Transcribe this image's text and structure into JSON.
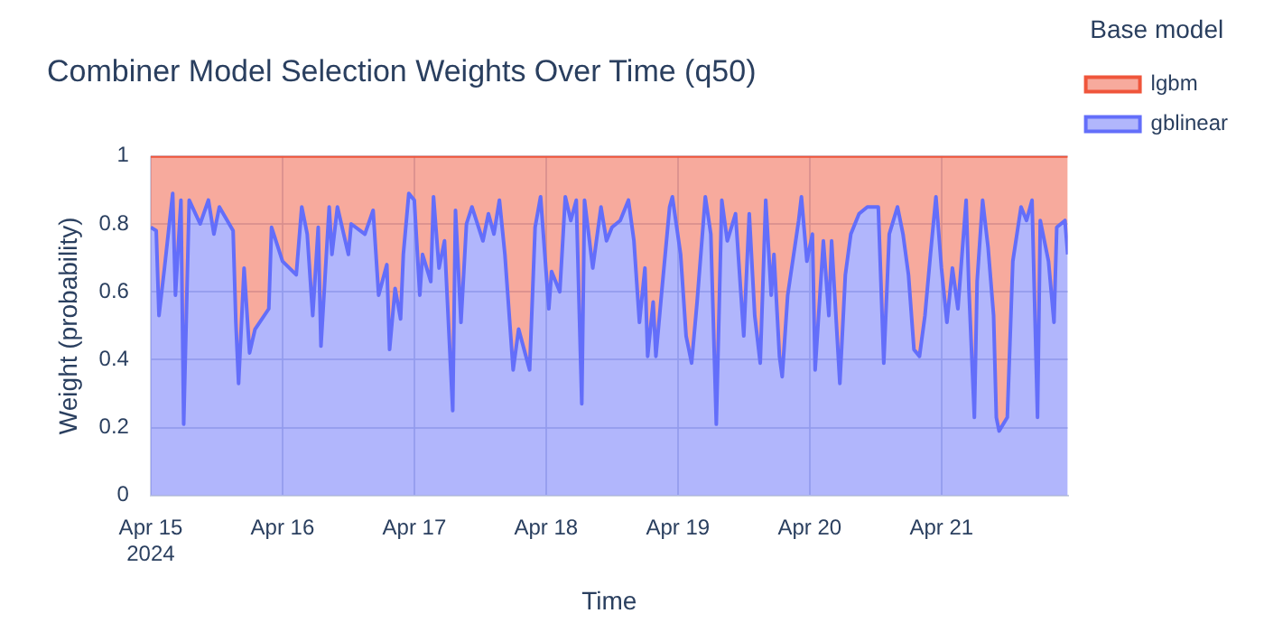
{
  "chart_data": {
    "type": "area",
    "title": "Combiner Model Selection Weights Over Time (q50)",
    "xlabel": "Time",
    "ylabel": "Weight (probability)",
    "legend_title": "Base model",
    "x": [
      "2024-04-15T00:00",
      "2024-04-15T01:00",
      "2024-04-15T01:30",
      "2024-04-15T02:30",
      "2024-04-15T04:00",
      "2024-04-15T04:30",
      "2024-04-15T05:30",
      "2024-04-15T06:00",
      "2024-04-15T07:00",
      "2024-04-15T09:00",
      "2024-04-15T10:30",
      "2024-04-15T11:30",
      "2024-04-15T12:30",
      "2024-04-15T15:00",
      "2024-04-15T15:30",
      "2024-04-15T16:00",
      "2024-04-15T17:00",
      "2024-04-15T18:00",
      "2024-04-15T19:00",
      "2024-04-15T21:30",
      "2024-04-15T22:00",
      "2024-04-16T00:00",
      "2024-04-16T02:30",
      "2024-04-16T03:30",
      "2024-04-16T04:30",
      "2024-04-16T05:30",
      "2024-04-16T06:30",
      "2024-04-16T07:00",
      "2024-04-16T08:30",
      "2024-04-16T09:00",
      "2024-04-16T10:00",
      "2024-04-16T12:00",
      "2024-04-16T12:30",
      "2024-04-16T15:00",
      "2024-04-16T16:30",
      "2024-04-16T17:30",
      "2024-04-16T19:00",
      "2024-04-16T19:30",
      "2024-04-16T20:30",
      "2024-04-16T21:30",
      "2024-04-16T22:00",
      "2024-04-16T23:00",
      "2024-04-17T00:00",
      "2024-04-17T01:00",
      "2024-04-17T01:30",
      "2024-04-17T03:00",
      "2024-04-17T03:30",
      "2024-04-17T04:30",
      "2024-04-17T05:30",
      "2024-04-17T07:00",
      "2024-04-17T07:30",
      "2024-04-17T08:30",
      "2024-04-17T09:30",
      "2024-04-17T10:30",
      "2024-04-17T12:30",
      "2024-04-17T13:30",
      "2024-04-17T14:30",
      "2024-04-17T15:30",
      "2024-04-17T16:30",
      "2024-04-17T18:00",
      "2024-04-17T19:00",
      "2024-04-17T20:00",
      "2024-04-17T21:00",
      "2024-04-17T22:00",
      "2024-04-17T23:00",
      "2024-04-18T00:30",
      "2024-04-18T01:00",
      "2024-04-18T02:30",
      "2024-04-18T03:30",
      "2024-04-18T04:30",
      "2024-04-18T05:30",
      "2024-04-18T06:30",
      "2024-04-18T07:00",
      "2024-04-18T08:30",
      "2024-04-18T10:00",
      "2024-04-18T11:00",
      "2024-04-18T12:00",
      "2024-04-18T13:30",
      "2024-04-18T15:00",
      "2024-04-18T16:00",
      "2024-04-18T17:00",
      "2024-04-18T18:00",
      "2024-04-18T18:30",
      "2024-04-18T19:30",
      "2024-04-18T20:00",
      "2024-04-18T21:00",
      "2024-04-18T22:30",
      "2024-04-18T23:00",
      "2024-04-19T00:30",
      "2024-04-19T01:30",
      "2024-04-19T02:30",
      "2024-04-19T03:30",
      "2024-04-19T05:00",
      "2024-04-19T06:00",
      "2024-04-19T07:00",
      "2024-04-19T08:00",
      "2024-04-19T09:00",
      "2024-04-19T10:30",
      "2024-04-19T12:00",
      "2024-04-19T13:00",
      "2024-04-19T14:00",
      "2024-04-19T15:00",
      "2024-04-19T16:00",
      "2024-04-19T17:00",
      "2024-04-19T17:30",
      "2024-04-19T18:30",
      "2024-04-19T19:00",
      "2024-04-19T20:00",
      "2024-04-19T22:00",
      "2024-04-19T22:30",
      "2024-04-19T23:30",
      "2024-04-20T00:30",
      "2024-04-20T01:00",
      "2024-04-20T02:30",
      "2024-04-20T03:30",
      "2024-04-20T04:00",
      "2024-04-20T05:30",
      "2024-04-20T06:30",
      "2024-04-20T07:30",
      "2024-04-20T09:00",
      "2024-04-20T10:30",
      "2024-04-20T12:30",
      "2024-04-20T13:30",
      "2024-04-20T14:30",
      "2024-04-20T16:00",
      "2024-04-20T17:00",
      "2024-04-20T18:00",
      "2024-04-20T19:00",
      "2024-04-20T20:00",
      "2024-04-20T21:00",
      "2024-04-20T22:00",
      "2024-04-20T23:00",
      "2024-04-21T00:00",
      "2024-04-21T01:00",
      "2024-04-21T02:00",
      "2024-04-21T03:00",
      "2024-04-21T04:30",
      "2024-04-21T05:00",
      "2024-04-21T06:00",
      "2024-04-21T06:30",
      "2024-04-21T07:30",
      "2024-04-21T08:30",
      "2024-04-21T09:30",
      "2024-04-21T10:00",
      "2024-04-21T10:30",
      "2024-04-21T12:00",
      "2024-04-21T13:00",
      "2024-04-21T14:30",
      "2024-04-21T15:30",
      "2024-04-21T16:30",
      "2024-04-21T17:30",
      "2024-04-21T18:00",
      "2024-04-21T19:30",
      "2024-04-21T20:30",
      "2024-04-21T21:00",
      "2024-04-21T22:30",
      "2024-04-21T23:00"
    ],
    "series": [
      {
        "name": "gblinear",
        "color": "#636efa",
        "values": [
          0.79,
          0.78,
          0.53,
          0.67,
          0.89,
          0.59,
          0.87,
          0.21,
          0.87,
          0.8,
          0.87,
          0.77,
          0.85,
          0.78,
          0.51,
          0.33,
          0.67,
          0.42,
          0.49,
          0.55,
          0.79,
          0.69,
          0.65,
          0.85,
          0.77,
          0.53,
          0.79,
          0.44,
          0.85,
          0.71,
          0.85,
          0.71,
          0.8,
          0.77,
          0.84,
          0.59,
          0.68,
          0.43,
          0.61,
          0.52,
          0.71,
          0.89,
          0.87,
          0.59,
          0.71,
          0.63,
          0.88,
          0.67,
          0.75,
          0.25,
          0.84,
          0.51,
          0.8,
          0.85,
          0.75,
          0.83,
          0.77,
          0.87,
          0.71,
          0.37,
          0.49,
          0.43,
          0.37,
          0.79,
          0.88,
          0.55,
          0.66,
          0.6,
          0.88,
          0.81,
          0.87,
          0.27,
          0.87,
          0.67,
          0.85,
          0.75,
          0.79,
          0.81,
          0.87,
          0.75,
          0.51,
          0.67,
          0.41,
          0.57,
          0.41,
          0.59,
          0.85,
          0.88,
          0.71,
          0.47,
          0.39,
          0.57,
          0.88,
          0.77,
          0.21,
          0.87,
          0.75,
          0.83,
          0.47,
          0.83,
          0.53,
          0.39,
          0.87,
          0.59,
          0.71,
          0.41,
          0.35,
          0.59,
          0.81,
          0.88,
          0.69,
          0.77,
          0.37,
          0.75,
          0.53,
          0.75,
          0.33,
          0.65,
          0.77,
          0.83,
          0.85,
          0.85,
          0.39,
          0.77,
          0.85,
          0.77,
          0.65,
          0.43,
          0.41,
          0.53,
          0.71,
          0.88,
          0.67,
          0.51,
          0.67,
          0.55,
          0.87,
          0.61,
          0.23,
          0.63,
          0.87,
          0.73,
          0.53,
          0.23,
          0.19,
          0.23,
          0.69,
          0.85,
          0.81,
          0.87,
          0.23,
          0.81,
          0.69,
          0.51,
          0.79,
          0.81,
          0.71
        ]
      },
      {
        "name": "lgbm",
        "color": "#ef553b",
        "values": [
          0.21,
          0.22,
          0.47,
          0.33,
          0.11,
          0.41,
          0.13,
          0.79,
          0.13,
          0.2,
          0.13,
          0.23,
          0.15,
          0.22,
          0.49,
          0.67,
          0.33,
          0.58,
          0.51,
          0.45,
          0.21,
          0.31,
          0.35,
          0.15,
          0.23,
          0.47,
          0.21,
          0.56,
          0.15,
          0.29,
          0.15,
          0.29,
          0.2,
          0.23,
          0.16,
          0.41,
          0.32,
          0.57,
          0.39,
          0.48,
          0.29,
          0.11,
          0.13,
          0.41,
          0.29,
          0.37,
          0.12,
          0.33,
          0.25,
          0.75,
          0.16,
          0.49,
          0.2,
          0.15,
          0.25,
          0.17,
          0.23,
          0.13,
          0.29,
          0.63,
          0.51,
          0.57,
          0.63,
          0.21,
          0.12,
          0.45,
          0.34,
          0.4,
          0.12,
          0.19,
          0.13,
          0.73,
          0.13,
          0.33,
          0.15,
          0.25,
          0.21,
          0.19,
          0.13,
          0.25,
          0.49,
          0.33,
          0.59,
          0.43,
          0.59,
          0.41,
          0.15,
          0.12,
          0.29,
          0.53,
          0.61,
          0.43,
          0.12,
          0.23,
          0.79,
          0.13,
          0.25,
          0.17,
          0.53,
          0.17,
          0.47,
          0.61,
          0.13,
          0.41,
          0.29,
          0.59,
          0.65,
          0.41,
          0.19,
          0.12,
          0.31,
          0.23,
          0.63,
          0.25,
          0.47,
          0.25,
          0.67,
          0.35,
          0.23,
          0.17,
          0.15,
          0.15,
          0.61,
          0.23,
          0.15,
          0.23,
          0.35,
          0.57,
          0.59,
          0.47,
          0.29,
          0.12,
          0.33,
          0.49,
          0.33,
          0.45,
          0.13,
          0.39,
          0.77,
          0.37,
          0.13,
          0.27,
          0.47,
          0.77,
          0.81,
          0.77,
          0.31,
          0.15,
          0.19,
          0.13,
          0.77,
          0.19,
          0.31,
          0.49,
          0.21,
          0.19,
          0.29
        ]
      }
    ],
    "stacked": true,
    "xlim": [
      "2024-04-15T00:00",
      "2024-04-21T23:00"
    ],
    "xticks": [
      {
        "value": "2024-04-15",
        "label": "Apr 15\n2024"
      },
      {
        "value": "2024-04-16",
        "label": "Apr 16"
      },
      {
        "value": "2024-04-17",
        "label": "Apr 17"
      },
      {
        "value": "2024-04-18",
        "label": "Apr 18"
      },
      {
        "value": "2024-04-19",
        "label": "Apr 19"
      },
      {
        "value": "2024-04-20",
        "label": "Apr 20"
      },
      {
        "value": "2024-04-21",
        "label": "Apr 21"
      }
    ],
    "ylim": [
      0,
      1
    ],
    "yticks": [
      0,
      0.2,
      0.4,
      0.6,
      0.8,
      1
    ],
    "grid": true,
    "legend": "right",
    "marker": "none",
    "line_style": "solid"
  }
}
